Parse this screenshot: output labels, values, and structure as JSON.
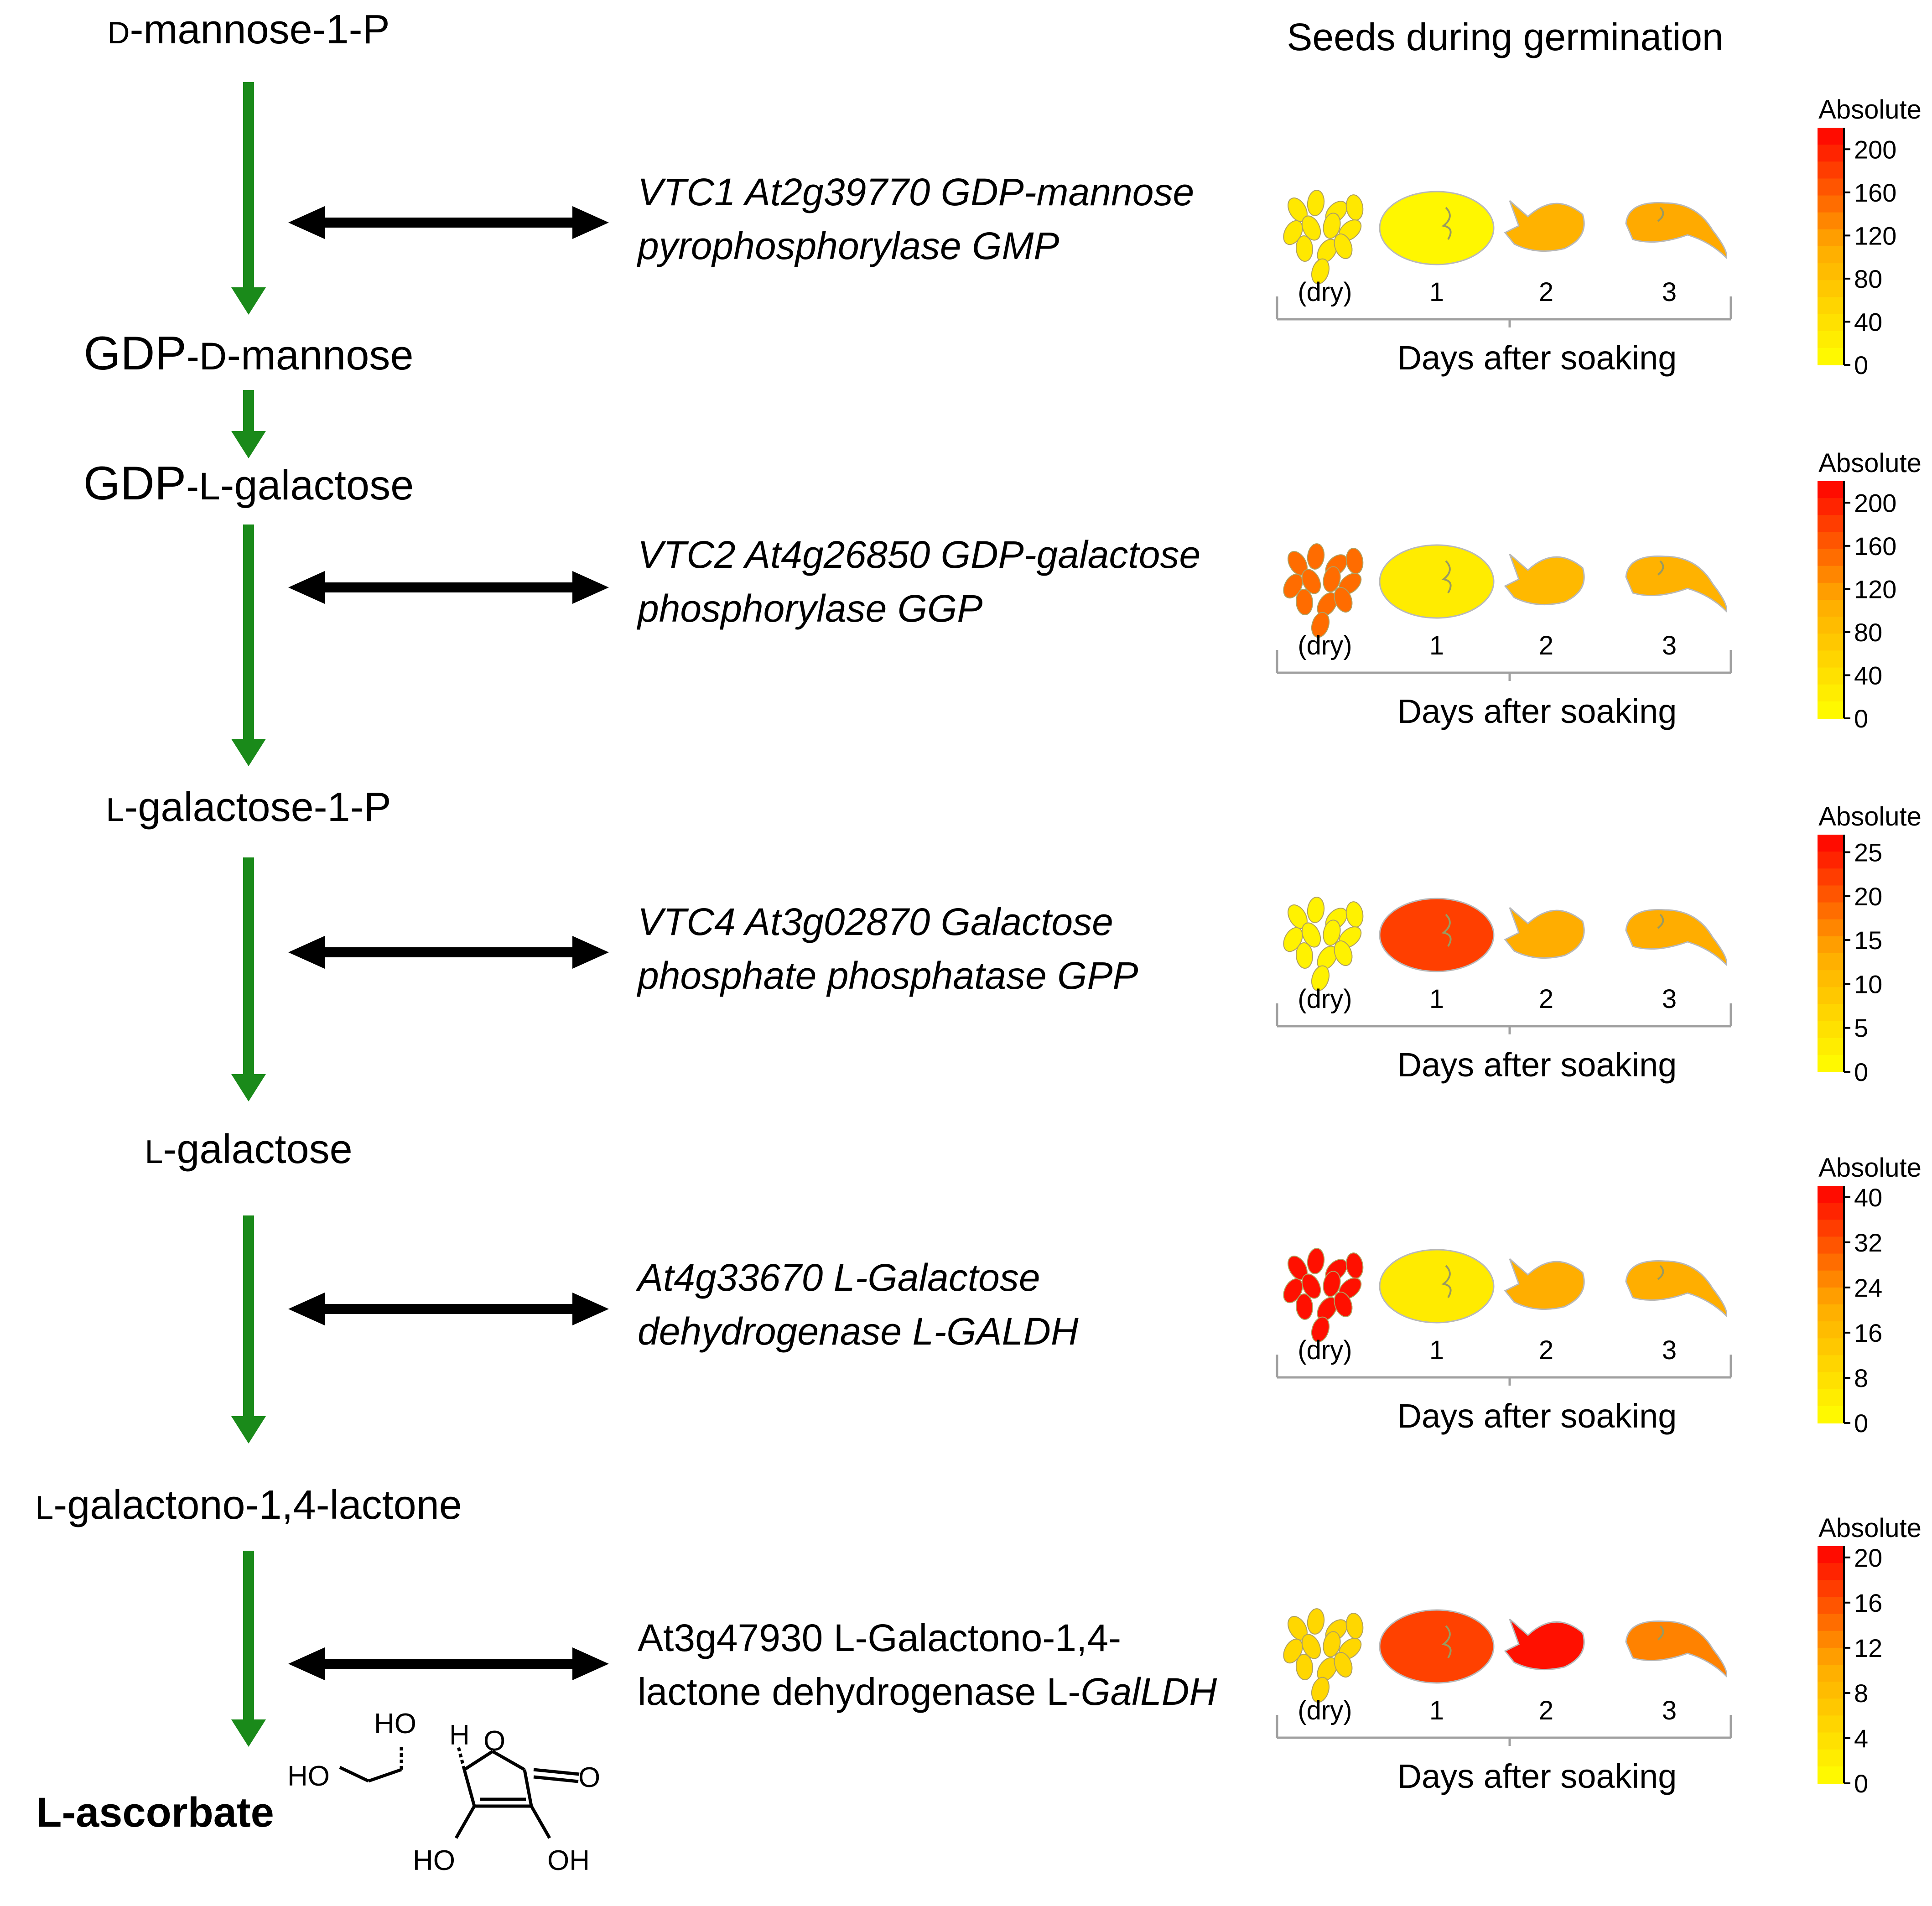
{
  "title": "Seeds during germination",
  "metabolites": [
    {
      "prefix": "D",
      "main": "-mannose-1-P",
      "bold": false
    },
    {
      "prefix": "GDP-D",
      "main": "-mannose",
      "bold": false
    },
    {
      "prefix": "GDP-L",
      "main": "-galactose",
      "bold": false
    },
    {
      "prefix": "L",
      "main": "-galactose-1-P",
      "bold": false
    },
    {
      "prefix": "L",
      "main": "-galactose",
      "bold": false
    },
    {
      "prefix": "L",
      "main": "-galactono-1,4-lactone",
      "bold": false
    },
    {
      "prefix": "",
      "main": "L-ascorbate",
      "bold": true
    }
  ],
  "enzymes": [
    {
      "line1": "VTC1 At2g39770 GDP-mannose",
      "line2": "pyrophosphorylase GMP",
      "italic": true
    },
    {
      "line1": "VTC2 At4g26850 GDP-galactose",
      "line2": "phosphorylase GGP",
      "italic": true
    },
    {
      "line1": "VTC4 At3g02870 Galactose",
      "line2": "phosphate phosphatase GPP",
      "italic": true
    },
    {
      "line1": "At4g33670 L-Galactose",
      "line2": "dehydrogenase L-GALDH",
      "italic": true
    },
    {
      "line1": "At3g47930 L-Galactono-1,4-",
      "line2": "lactone dehydrogenase L-",
      "line2_italic_tail": "GalLDH",
      "italic": false
    }
  ],
  "panel": {
    "stage_labels": [
      "(dry)",
      "1",
      "2",
      "3"
    ],
    "xlabel": "Days after soaking",
    "legend_title": "Absolute"
  },
  "chart_data": [
    {
      "type": "heatmap",
      "gene": "VTC1 At2g39770",
      "categories": [
        "(dry)",
        "1",
        "2",
        "3"
      ],
      "values": [
        30,
        10,
        100,
        110
      ],
      "scale_ticks": [
        "200",
        "160",
        "120",
        "80",
        "40",
        "0"
      ],
      "vmax": 220
    },
    {
      "type": "heatmap",
      "gene": "VTC2 At4g26850",
      "categories": [
        "(dry)",
        "1",
        "2",
        "3"
      ],
      "values": [
        150,
        25,
        90,
        100
      ],
      "scale_ticks": [
        "200",
        "160",
        "120",
        "80",
        "40",
        "0"
      ],
      "vmax": 220
    },
    {
      "type": "heatmap",
      "gene": "VTC4 At3g02870",
      "categories": [
        "(dry)",
        "1",
        "2",
        "3"
      ],
      "values": [
        2,
        22,
        13,
        13
      ],
      "scale_ticks": [
        "25",
        "20",
        "15",
        "10",
        "5",
        "0"
      ],
      "vmax": 27
    },
    {
      "type": "heatmap",
      "gene": "At4g33670",
      "categories": [
        "(dry)",
        "1",
        "2",
        "3"
      ],
      "values": [
        40,
        5,
        20,
        20
      ],
      "scale_ticks": [
        "40",
        "32",
        "24",
        "16",
        "8",
        "0"
      ],
      "vmax": 42
    },
    {
      "type": "heatmap",
      "gene": "At3g47930",
      "categories": [
        "(dry)",
        "1",
        "2",
        "3"
      ],
      "values": [
        5,
        17,
        20,
        13
      ],
      "scale_ticks": [
        "20",
        "16",
        "12",
        "8",
        "4",
        "0"
      ],
      "vmax": 21
    }
  ],
  "structure_labels": {
    "ho_top": "HO",
    "h": "H",
    "ho_left": "HO",
    "o_ring": "O",
    "o_carbonyl": "O",
    "ho_bottom": "HO",
    "oh_bottom": "OH"
  },
  "colors": {
    "arrow_green": "#1a8a1a",
    "arrow_black": "#000000",
    "scale_low": "#ffff00",
    "scale_mid": "#ffa500",
    "scale_high": "#ff0000",
    "axis_gray": "#a0a0a0"
  }
}
